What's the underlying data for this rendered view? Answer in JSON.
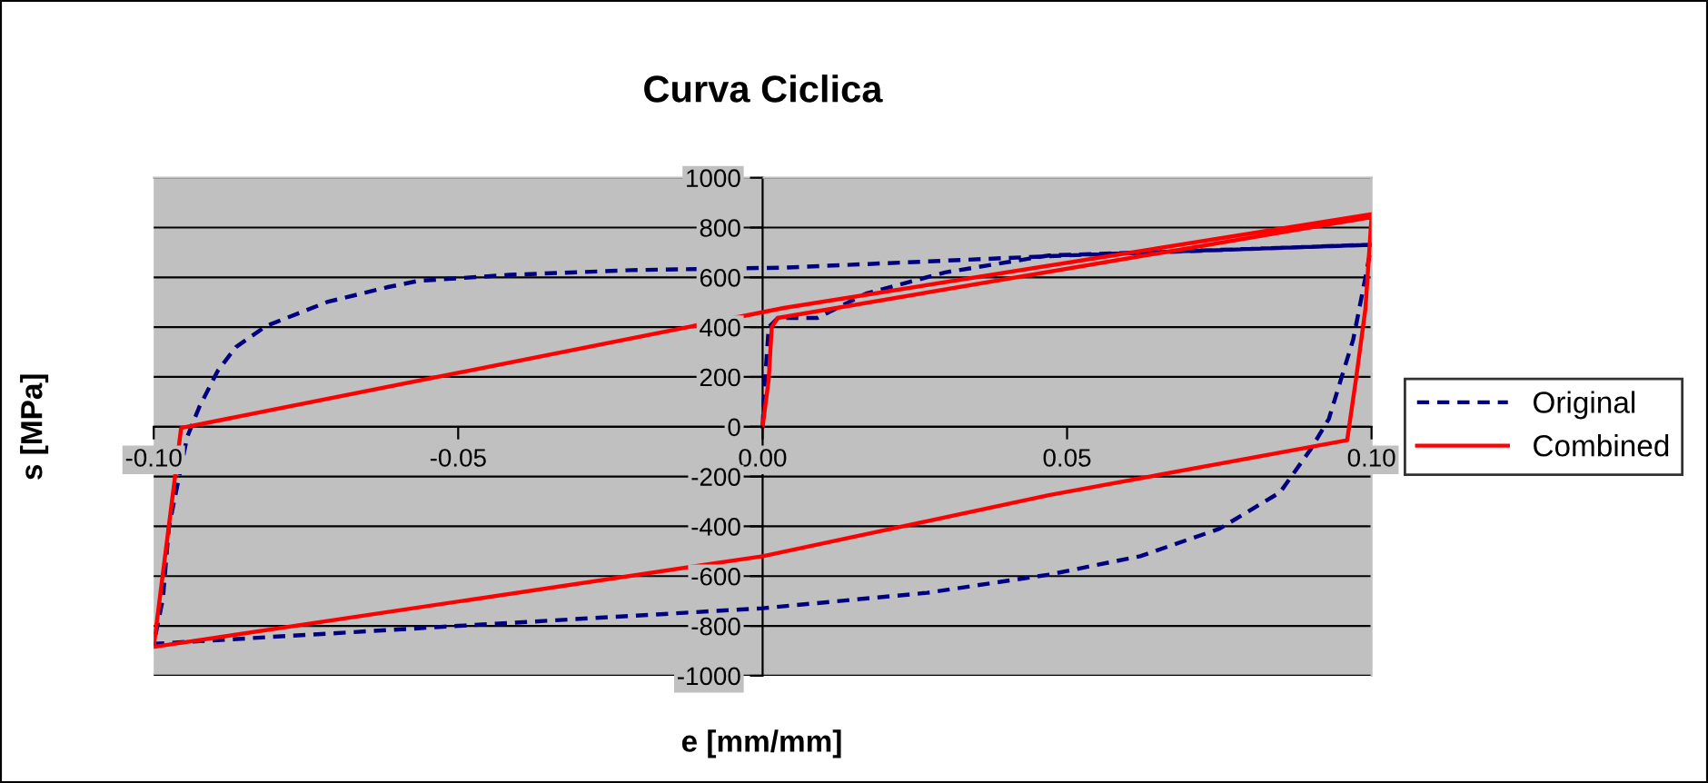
{
  "chart_data": {
    "type": "line",
    "title": "Curva Ciclica",
    "xlabel": "e [mm/mm]",
    "ylabel": "s [MPa]",
    "xlim": [
      -0.1,
      0.1
    ],
    "ylim": [
      -1000,
      1000
    ],
    "xticks": [
      {
        "value": -0.1,
        "label": "-0.10"
      },
      {
        "value": -0.05,
        "label": "-0.05"
      },
      {
        "value": 0,
        "label": "0.00"
      },
      {
        "value": 0.05,
        "label": "0.05"
      },
      {
        "value": 0.1,
        "label": "0.10"
      }
    ],
    "yticks": [
      -1000,
      -800,
      -600,
      -400,
      -200,
      0,
      200,
      400,
      600,
      800,
      1000
    ],
    "grid": "y",
    "legend": "right",
    "marker": "none",
    "series": [
      {
        "name": "Original",
        "color": "#000080",
        "line_style": "dashed",
        "x": [
          0,
          0.0003,
          0.001,
          0.0025,
          0.009,
          0.017,
          0.03,
          0.047,
          0.07,
          0.1,
          0.099,
          0.097,
          0.093,
          0.09,
          0.085,
          0.075,
          0.062,
          0.047,
          0.027,
          0,
          -0.05,
          -0.1,
          -0.0985,
          -0.0975,
          -0.0945,
          -0.0925,
          -0.0895,
          -0.0865,
          -0.0815,
          -0.0715,
          -0.0615,
          -0.0565,
          -0.0415,
          -0.0215,
          0.0035,
          0.05,
          0.1
        ],
        "values": [
          0,
          150,
          400,
          437,
          437,
          535,
          620,
          688,
          706,
          731,
          600,
          351,
          32,
          -91,
          -263,
          -410,
          -520,
          -594,
          -667,
          -729,
          -800,
          -872,
          -692,
          -402,
          -41,
          80,
          224,
          320,
          405,
          501,
          561,
          586,
          610,
          629,
          639,
          688,
          731
        ]
      },
      {
        "name": "Combined",
        "color": "#ff0000",
        "line_style": "solid",
        "x": [
          0,
          0.001,
          0.0015,
          0.0025,
          0.1,
          0.099,
          0.0975,
          0.096,
          0.047,
          0,
          -0.1,
          -0.0955,
          0.0035,
          0.1
        ],
        "values": [
          0,
          191,
          400,
          437,
          842,
          474,
          200,
          -54,
          -275,
          -520,
          -884,
          -5,
          477,
          854
        ]
      }
    ]
  }
}
